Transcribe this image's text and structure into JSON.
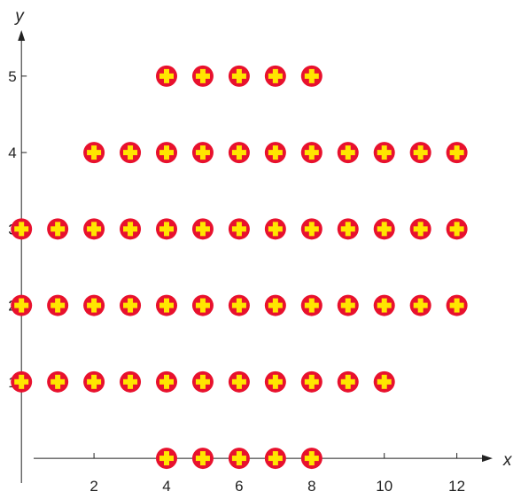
{
  "chart_data": {
    "type": "scatter",
    "title": "",
    "xlabel": "x",
    "ylabel": "y",
    "xlim": [
      -0.2,
      12.4
    ],
    "ylim": [
      -0.15,
      5.3
    ],
    "x_ticks": [
      2,
      4,
      6,
      8,
      10,
      12
    ],
    "y_ticks": [
      1,
      2,
      3,
      4,
      5
    ],
    "grid": false,
    "marker": "circle-with-plus",
    "colors": {
      "marker_fill": "#e8112d",
      "marker_cross": "#ffe600",
      "axis": "#222222"
    },
    "series": [
      {
        "points": [
          [
            4,
            0
          ],
          [
            5,
            0
          ],
          [
            6,
            0
          ],
          [
            7,
            0
          ],
          [
            8,
            0
          ],
          [
            0,
            1
          ],
          [
            1,
            1
          ],
          [
            2,
            1
          ],
          [
            3,
            1
          ],
          [
            4,
            1
          ],
          [
            5,
            1
          ],
          [
            6,
            1
          ],
          [
            7,
            1
          ],
          [
            8,
            1
          ],
          [
            9,
            1
          ],
          [
            10,
            1
          ],
          [
            0,
            2
          ],
          [
            1,
            2
          ],
          [
            2,
            2
          ],
          [
            3,
            2
          ],
          [
            4,
            2
          ],
          [
            5,
            2
          ],
          [
            6,
            2
          ],
          [
            7,
            2
          ],
          [
            8,
            2
          ],
          [
            9,
            2
          ],
          [
            10,
            2
          ],
          [
            11,
            2
          ],
          [
            12,
            2
          ],
          [
            0,
            3
          ],
          [
            1,
            3
          ],
          [
            2,
            3
          ],
          [
            3,
            3
          ],
          [
            4,
            3
          ],
          [
            5,
            3
          ],
          [
            6,
            3
          ],
          [
            7,
            3
          ],
          [
            8,
            3
          ],
          [
            9,
            3
          ],
          [
            10,
            3
          ],
          [
            11,
            3
          ],
          [
            12,
            3
          ],
          [
            2,
            4
          ],
          [
            3,
            4
          ],
          [
            4,
            4
          ],
          [
            5,
            4
          ],
          [
            6,
            4
          ],
          [
            7,
            4
          ],
          [
            8,
            4
          ],
          [
            9,
            4
          ],
          [
            10,
            4
          ],
          [
            11,
            4
          ],
          [
            12,
            4
          ],
          [
            4,
            5
          ],
          [
            5,
            5
          ],
          [
            6,
            5
          ],
          [
            7,
            5
          ],
          [
            8,
            5
          ]
        ]
      }
    ]
  }
}
